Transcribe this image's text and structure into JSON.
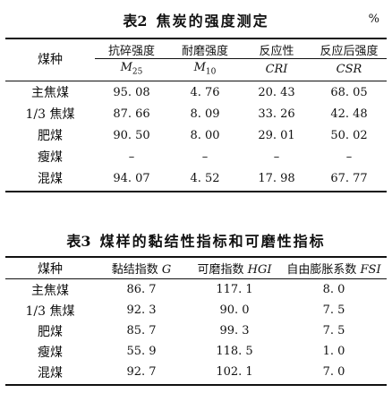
{
  "table1": {
    "number": "表2",
    "title": "焦炭的强度测定",
    "unit": "%",
    "header_rowname": "煤种",
    "header_top": [
      "抗碎强度",
      "耐磨强度",
      "反应性",
      "反应后强度"
    ],
    "header_sym": [
      "M",
      "M",
      "CRI",
      "CSR"
    ],
    "header_sub": [
      "25",
      "10",
      "",
      ""
    ],
    "rows": [
      [
        "主焦煤",
        "95. 08",
        "4. 76",
        "20. 43",
        "68. 05"
      ],
      [
        "1/3 焦煤",
        "87. 66",
        "8. 09",
        "33. 26",
        "42. 48"
      ],
      [
        "肥煤",
        "90. 50",
        "8. 00",
        "29. 01",
        "50. 02"
      ],
      [
        "瘦煤",
        "–",
        "–",
        "–",
        "–"
      ],
      [
        "混煤",
        "94. 07",
        "4. 52",
        "17. 98",
        "67. 77"
      ]
    ]
  },
  "table2": {
    "number": "表3",
    "title": "煤样的黏结性指标和可磨性指标",
    "headers": [
      "煤种",
      "黏结指数 ",
      "可磨指数 ",
      "自由膨胀系数 "
    ],
    "header_sym": [
      "",
      "G",
      "HGI",
      "FSI"
    ],
    "rows": [
      [
        "主焦煤",
        "86. 7",
        "117. 1",
        "8. 0"
      ],
      [
        "1/3 焦煤",
        "92. 3",
        "90. 0",
        "7. 5"
      ],
      [
        "肥煤",
        "85. 7",
        "99. 3",
        "7. 5"
      ],
      [
        "瘦煤",
        "55. 9",
        "118. 5",
        "1. 0"
      ],
      [
        "混煤",
        "92. 7",
        "102. 1",
        "7. 0"
      ]
    ]
  }
}
